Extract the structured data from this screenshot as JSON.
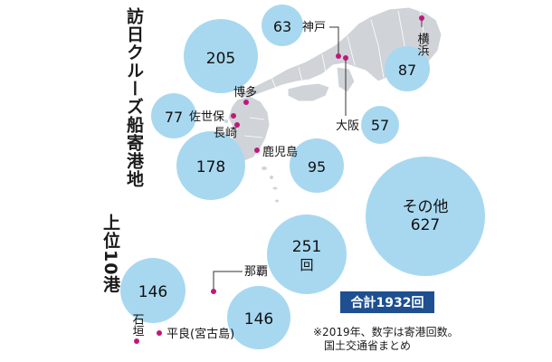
{
  "title_lines": [
    "訪日クルーズ船寄港地",
    "上位10港"
  ],
  "total_label": "合計1932回",
  "note_lines": [
    "※2019年、数字は寄港回数。",
    "国土交通省まとめ"
  ],
  "colors": {
    "bubble": "#a8d8f0",
    "land": "#d0d4d8",
    "border": "#ffffff",
    "marker": "#c0187a",
    "total_box": "#1d4f91"
  },
  "ports": [
    {
      "name": "博多",
      "count": "205"
    },
    {
      "name": "神戸",
      "count": "63"
    },
    {
      "name": "横浜",
      "count": "87"
    },
    {
      "name": "佐世保",
      "count": "77"
    },
    {
      "name": "大阪",
      "count": "57"
    },
    {
      "name": "長崎",
      "count": "178"
    },
    {
      "name": "鹿児島",
      "count": "95"
    },
    {
      "name": "その他",
      "count": "627"
    },
    {
      "name": "那覇",
      "count": "251"
    },
    {
      "name": "石垣",
      "count": "146"
    },
    {
      "name": "平良(宮古島)",
      "count": "146"
    }
  ],
  "unit_kai": "回"
}
